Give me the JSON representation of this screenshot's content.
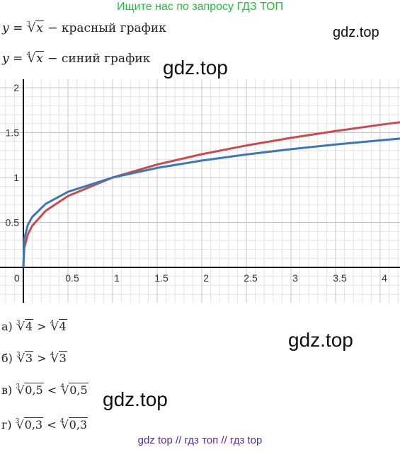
{
  "banner": "Ищите нас по запросу ГДЗ ТОП",
  "formulas": {
    "red": {
      "lhs": "y",
      "eq": "=",
      "index": "3",
      "arg": "x",
      "desc": "− красный график"
    },
    "blue": {
      "lhs": "y",
      "eq": "=",
      "index": "4",
      "arg": "x",
      "desc": "− синий график"
    }
  },
  "watermarks": [
    "gdz.top",
    "gdz.top",
    "gdz.top",
    "gdz.top"
  ],
  "answers": [
    {
      "label": "а)",
      "i1": "3",
      "a1": "4",
      "op": ">",
      "i2": "4",
      "a2": "4"
    },
    {
      "label": "б)",
      "i1": "3",
      "a1": "3",
      "op": ">",
      "i2": "4",
      "a2": "3"
    },
    {
      "label": "в)",
      "i1": "3",
      "a1": "0,5",
      "op": "<",
      "i2": "4",
      "a2": "0,5"
    },
    {
      "label": "г)",
      "i1": "3",
      "a1": "0,3",
      "op": "<",
      "i2": "4",
      "a2": "0,3"
    }
  ],
  "footer": "gdz top  //  гдз топ  //  гдз top",
  "chart_data": {
    "type": "line",
    "xlim": [
      -0.25,
      4.25
    ],
    "ylim": [
      -0.35,
      2.05
    ],
    "x_ticks": [
      "0",
      "0.5",
      "1",
      "1.5",
      "2",
      "2.5",
      "3",
      "3.5",
      "4"
    ],
    "x_tick_values": [
      0,
      0.5,
      1,
      1.5,
      2,
      2.5,
      3,
      3.5,
      4
    ],
    "y_ticks": [
      "0.5",
      "1",
      "1.5",
      "2"
    ],
    "y_tick_values": [
      0.5,
      1,
      1.5,
      2
    ],
    "grid": true,
    "series": [
      {
        "function": "x^(1/3)",
        "color": "#cc4a4e",
        "x": [
          0,
          0.01,
          0.05,
          0.1,
          0.25,
          0.5,
          1,
          1.5,
          2,
          2.5,
          3,
          3.5,
          4,
          4.25
        ],
        "y": [
          0,
          0.215,
          0.368,
          0.464,
          0.63,
          0.794,
          1,
          1.145,
          1.26,
          1.357,
          1.442,
          1.518,
          1.587,
          1.62
        ]
      },
      {
        "function": "x^(1/4)",
        "color": "#3d78b6",
        "x": [
          0,
          0.01,
          0.05,
          0.1,
          0.25,
          0.5,
          1,
          1.5,
          2,
          2.5,
          3,
          3.5,
          4,
          4.25
        ],
        "y": [
          0,
          0.316,
          0.473,
          0.562,
          0.707,
          0.841,
          1,
          1.107,
          1.189,
          1.257,
          1.316,
          1.368,
          1.414,
          1.436
        ]
      }
    ]
  }
}
